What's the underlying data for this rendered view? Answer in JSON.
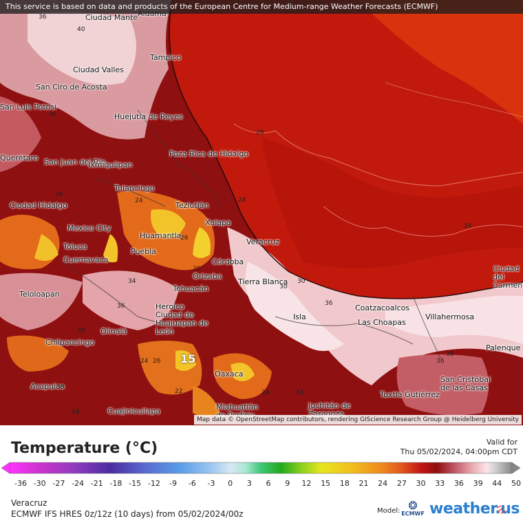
{
  "attribution_top": "This service is based on data and products of the European Centre for Medium-range Weather Forecasts (ECMWF)",
  "attribution_bottom": "Map data © OpenStreetMap contributors, rendering GIScience Research Group @ Heidelberg University",
  "legend": {
    "title": "Temperature (°C)",
    "ticks": [
      "-36",
      "-30",
      "-27",
      "-24",
      "-21",
      "-18",
      "-15",
      "-12",
      "-9",
      "-6",
      "-3",
      "0",
      "3",
      "6",
      "9",
      "12",
      "15",
      "18",
      "21",
      "24",
      "27",
      "30",
      "33",
      "36",
      "39",
      "44",
      "50"
    ]
  },
  "valid_label": "Valid for",
  "valid_time": "Thu 05/02/2024, 04:00pm CDT",
  "region": "Veracruz",
  "model_run": "ECMWF IFS HRES 0z/12z (10 days) from 05/02/2024/00z",
  "model_label": "Model:",
  "ecmwf_logo_text": "ECMWF",
  "brand": "weather.us",
  "cities": [
    {
      "name": "Ciudad Mante"
    },
    {
      "name": "Aldama"
    },
    {
      "name": "Tampico"
    },
    {
      "name": "Ciudad Valles"
    },
    {
      "name": "San Ciro de Acosta"
    },
    {
      "name": "San Luis Potosí"
    },
    {
      "name": "Huejutla de Reyes"
    },
    {
      "name": "Poza Rica de Hidalgo"
    },
    {
      "name": "Querétaro"
    },
    {
      "name": "San Juan del Río"
    },
    {
      "name": "Ixmiquilpan"
    },
    {
      "name": "Tulancingo"
    },
    {
      "name": "Teziutlán"
    },
    {
      "name": "Ciudad Hidalgo"
    },
    {
      "name": "Mexico City"
    },
    {
      "name": "Xalapa"
    },
    {
      "name": "Huamantla"
    },
    {
      "name": "Toluca"
    },
    {
      "name": "Puebla"
    },
    {
      "name": "Veracruz"
    },
    {
      "name": "Cuernavaca"
    },
    {
      "name": "Córdoba"
    },
    {
      "name": "Orizaba"
    },
    {
      "name": "Tierra Blanca"
    },
    {
      "name": "Tehuacán"
    },
    {
      "name": "Teloloapan"
    },
    {
      "name": "Heroica Ciudad de Huajuapan de León"
    },
    {
      "name": "Coatzacoalcos"
    },
    {
      "name": "Villahermosa"
    },
    {
      "name": "Ciudad del Carmen"
    },
    {
      "name": "Isla"
    },
    {
      "name": "Las Choapas"
    },
    {
      "name": "Olinalá"
    },
    {
      "name": "Chilpancingo"
    },
    {
      "name": "Palenque"
    },
    {
      "name": "Oaxaca"
    },
    {
      "name": "San Cristóbal de las Casas"
    },
    {
      "name": "Acapulco"
    },
    {
      "name": "Tuxtla Gutiérrez"
    },
    {
      "name": "Juchitán de Zaragoza"
    },
    {
      "name": "Miahuatlán de Porfirio"
    },
    {
      "name": "Cuajinicuilapa"
    }
  ],
  "isotherm_labels": [
    "36",
    "40",
    "36",
    "28",
    "28",
    "28",
    "28",
    "24",
    "26",
    "20",
    "30",
    "30",
    "34",
    "36",
    "38",
    "38",
    "36",
    "24",
    "26",
    "22",
    "24",
    "15",
    "28",
    "38",
    "36",
    "34"
  ],
  "colors": {
    "sea": "#c81e0a",
    "land_hot": "#8e0d0d",
    "land_warm": "#b34a4a",
    "land_pink": "#f0c8cc",
    "land_light": "#faeaea",
    "orange": "#e8781e",
    "yellow": "#f2c42a"
  }
}
